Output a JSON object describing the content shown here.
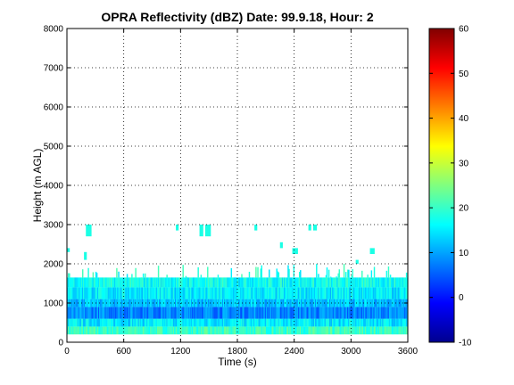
{
  "chart_data": {
    "type": "heatmap",
    "title": "OPRA Reflectivity (dBZ)  Date: 99.9.18, Hour: 2",
    "xlabel": "Time (s)",
    "ylabel": "Height (m AGL)",
    "xlim": [
      0,
      3600
    ],
    "ylim": [
      0,
      8000
    ],
    "xticks": [
      "0",
      "600",
      "1200",
      "1800",
      "2400",
      "3000",
      "3600"
    ],
    "yticks": [
      "0",
      "1000",
      "2000",
      "3000",
      "4000",
      "5000",
      "6000",
      "7000",
      "8000"
    ],
    "grid": true,
    "colorbar": {
      "colormap": "jet",
      "range": [
        -10,
        60
      ],
      "ticks": [
        "-10",
        "0",
        "10",
        "20",
        "30",
        "40",
        "50",
        "60"
      ]
    },
    "layers": [
      {
        "height_range": [
          200,
          400
        ],
        "dbz": 20
      },
      {
        "height_range": [
          400,
          600
        ],
        "dbz": 15
      },
      {
        "height_range": [
          600,
          900
        ],
        "dbz": 8
      },
      {
        "height_range": [
          900,
          1100
        ],
        "dbz": 12
      },
      {
        "height_range": [
          1100,
          1400
        ],
        "dbz": 15
      },
      {
        "height_range": [
          1400,
          1650
        ],
        "dbz": 17
      },
      {
        "height_range": [
          1650,
          2000
        ],
        "dbz": 18,
        "sparse": true
      }
    ],
    "scattered_echoes": [
      {
        "x_range": [
          0,
          30
        ],
        "height_range": [
          2300,
          2400
        ],
        "dbz": 18
      },
      {
        "x_range": [
          180,
          210
        ],
        "height_range": [
          2100,
          2300
        ],
        "dbz": 18
      },
      {
        "x_range": [
          200,
          260
        ],
        "height_range": [
          2700,
          3000
        ],
        "dbz": 18
      },
      {
        "x_range": [
          1150,
          1180
        ],
        "height_range": [
          2850,
          3000
        ],
        "dbz": 18
      },
      {
        "x_range": [
          1400,
          1440
        ],
        "height_range": [
          2700,
          3000
        ],
        "dbz": 18
      },
      {
        "x_range": [
          1460,
          1520
        ],
        "height_range": [
          2700,
          3000
        ],
        "dbz": 18
      },
      {
        "x_range": [
          1980,
          2010
        ],
        "height_range": [
          2850,
          3000
        ],
        "dbz": 18
      },
      {
        "x_range": [
          2250,
          2280
        ],
        "height_range": [
          2400,
          2550
        ],
        "dbz": 18
      },
      {
        "x_range": [
          2380,
          2440
        ],
        "height_range": [
          2250,
          2400
        ],
        "dbz": 18
      },
      {
        "x_range": [
          2550,
          2580
        ],
        "height_range": [
          2850,
          3000
        ],
        "dbz": 18
      },
      {
        "x_range": [
          2600,
          2640
        ],
        "height_range": [
          2850,
          3000
        ],
        "dbz": 18
      },
      {
        "x_range": [
          3050,
          3080
        ],
        "height_range": [
          2000,
          2100
        ],
        "dbz": 18
      },
      {
        "x_range": [
          3200,
          3250
        ],
        "height_range": [
          2250,
          2400
        ],
        "dbz": 18
      }
    ]
  }
}
